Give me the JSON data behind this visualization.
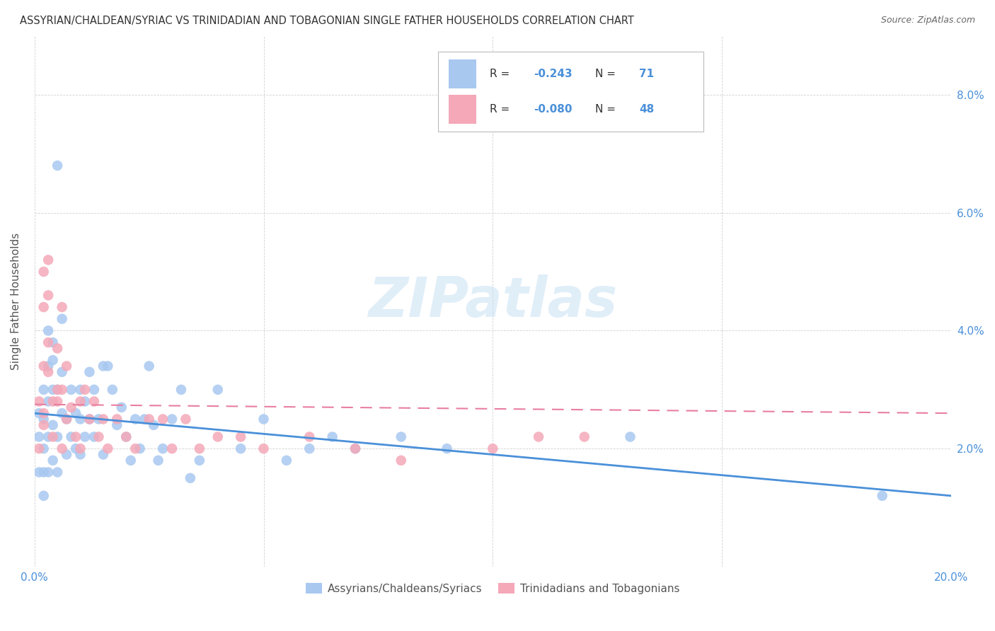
{
  "title": "ASSYRIAN/CHALDEAN/SYRIAC VS TRINIDADIAN AND TOBAGONIAN SINGLE FATHER HOUSEHOLDS CORRELATION CHART",
  "source": "Source: ZipAtlas.com",
  "ylabel": "Single Father Households",
  "watermark": "ZIPatlas",
  "color_blue": "#A8C8F0",
  "color_pink": "#F4A8B8",
  "line_blue": "#4A90D9",
  "line_pink": "#E87EA0",
  "xlim": [
    0.0,
    0.2
  ],
  "ylim": [
    0.0,
    0.09
  ],
  "legend_label1": "Assyrians/Chaldeans/Syriacs",
  "legend_label2": "Trinidadians and Tobagonians",
  "blue_x": [
    0.001,
    0.001,
    0.001,
    0.002,
    0.002,
    0.002,
    0.002,
    0.002,
    0.003,
    0.003,
    0.003,
    0.003,
    0.004,
    0.004,
    0.004,
    0.004,
    0.005,
    0.005,
    0.005,
    0.006,
    0.006,
    0.006,
    0.007,
    0.007,
    0.008,
    0.008,
    0.009,
    0.009,
    0.01,
    0.01,
    0.01,
    0.011,
    0.011,
    0.012,
    0.012,
    0.013,
    0.013,
    0.014,
    0.015,
    0.015,
    0.016,
    0.017,
    0.018,
    0.019,
    0.02,
    0.021,
    0.022,
    0.023,
    0.024,
    0.025,
    0.026,
    0.027,
    0.028,
    0.03,
    0.032,
    0.034,
    0.036,
    0.04,
    0.045,
    0.05,
    0.055,
    0.06,
    0.065,
    0.07,
    0.08,
    0.09,
    0.13,
    0.185,
    0.005,
    0.003,
    0.004
  ],
  "blue_y": [
    0.026,
    0.022,
    0.016,
    0.03,
    0.025,
    0.02,
    0.016,
    0.012,
    0.034,
    0.028,
    0.022,
    0.016,
    0.038,
    0.03,
    0.024,
    0.018,
    0.03,
    0.022,
    0.016,
    0.042,
    0.033,
    0.026,
    0.025,
    0.019,
    0.03,
    0.022,
    0.026,
    0.02,
    0.03,
    0.025,
    0.019,
    0.028,
    0.022,
    0.033,
    0.025,
    0.03,
    0.022,
    0.025,
    0.034,
    0.019,
    0.034,
    0.03,
    0.024,
    0.027,
    0.022,
    0.018,
    0.025,
    0.02,
    0.025,
    0.034,
    0.024,
    0.018,
    0.02,
    0.025,
    0.03,
    0.015,
    0.018,
    0.03,
    0.02,
    0.025,
    0.018,
    0.02,
    0.022,
    0.02,
    0.022,
    0.02,
    0.022,
    0.012,
    0.068,
    0.04,
    0.035
  ],
  "pink_x": [
    0.001,
    0.001,
    0.002,
    0.002,
    0.002,
    0.002,
    0.003,
    0.003,
    0.003,
    0.004,
    0.004,
    0.005,
    0.005,
    0.006,
    0.006,
    0.007,
    0.007,
    0.008,
    0.009,
    0.01,
    0.01,
    0.011,
    0.012,
    0.013,
    0.014,
    0.015,
    0.016,
    0.018,
    0.02,
    0.022,
    0.025,
    0.028,
    0.03,
    0.033,
    0.036,
    0.04,
    0.045,
    0.05,
    0.06,
    0.07,
    0.08,
    0.1,
    0.11,
    0.12,
    0.002,
    0.003,
    0.005,
    0.006
  ],
  "pink_y": [
    0.028,
    0.02,
    0.05,
    0.044,
    0.034,
    0.024,
    0.052,
    0.046,
    0.033,
    0.028,
    0.022,
    0.037,
    0.028,
    0.044,
    0.03,
    0.034,
    0.025,
    0.027,
    0.022,
    0.028,
    0.02,
    0.03,
    0.025,
    0.028,
    0.022,
    0.025,
    0.02,
    0.025,
    0.022,
    0.02,
    0.025,
    0.025,
    0.02,
    0.025,
    0.02,
    0.022,
    0.022,
    0.02,
    0.022,
    0.02,
    0.018,
    0.02,
    0.022,
    0.022,
    0.026,
    0.038,
    0.03,
    0.02
  ],
  "blue_line_x0": 0.0,
  "blue_line_y0": 0.026,
  "blue_line_x1": 0.2,
  "blue_line_y1": 0.012,
  "pink_line_x0": 0.0,
  "pink_line_y0": 0.0275,
  "pink_line_x1": 0.2,
  "pink_line_y1": 0.026
}
